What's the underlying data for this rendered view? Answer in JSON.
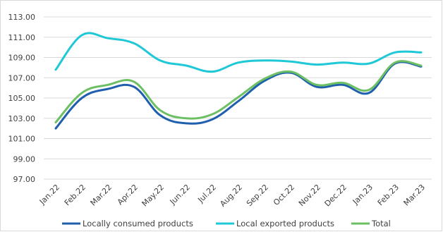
{
  "chart_data": {
    "type": "line",
    "title": "",
    "xlabel": "",
    "ylabel": "",
    "ylim": [
      97.0,
      113.0
    ],
    "yticks": [
      "97.00",
      "99.00",
      "101.00",
      "103.00",
      "105.00",
      "107.00",
      "109.00",
      "111.00",
      "113.00"
    ],
    "grid": true,
    "legend_position": "bottom",
    "categories": [
      "Jan.22",
      "Feb.22",
      "Mar.22",
      "Apr.22",
      "May.22",
      "Jun.22",
      "Jul.22",
      "Aug.22",
      "Sep.22",
      "Oct.22",
      "Nov.22",
      "Dec.22",
      "Jan.23",
      "Feb.23",
      "Mar.23"
    ],
    "series": [
      {
        "name": "Locally consumed products",
        "color": "#1f5fad",
        "values": [
          102.0,
          105.0,
          105.9,
          106.1,
          103.3,
          102.5,
          102.9,
          104.7,
          106.7,
          107.5,
          106.1,
          106.3,
          105.5,
          108.4,
          108.1
        ]
      },
      {
        "name": "Local exported products",
        "color": "#1fc8d6",
        "values": [
          107.8,
          111.2,
          110.9,
          110.4,
          108.7,
          108.2,
          107.6,
          108.5,
          108.7,
          108.6,
          108.3,
          108.5,
          108.4,
          109.5,
          109.5
        ]
      },
      {
        "name": "Total",
        "color": "#6cc063",
        "values": [
          102.6,
          105.5,
          106.3,
          106.6,
          103.8,
          103.0,
          103.4,
          105.1,
          106.9,
          107.6,
          106.3,
          106.5,
          105.8,
          108.5,
          108.2
        ]
      }
    ]
  }
}
